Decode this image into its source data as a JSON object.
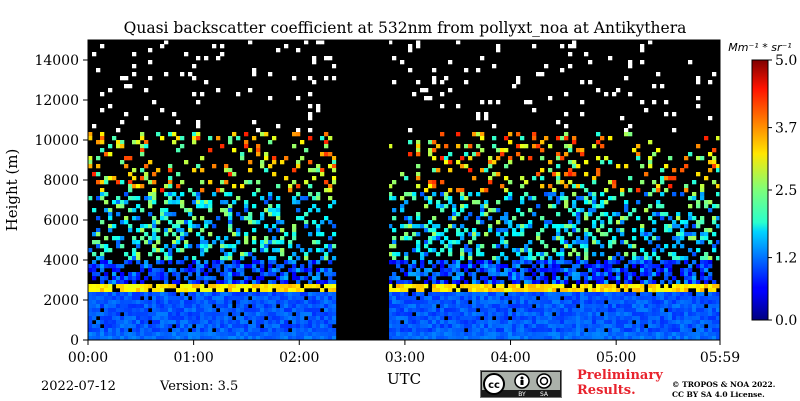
{
  "chart_data": {
    "type": "heatmap",
    "title": "Quasi backscatter coefficient at 532nm from pollyxt_noa at Antikythera",
    "xlabel": "UTC",
    "ylabel": "Height (m)",
    "x_tick_labels": [
      "00:00",
      "01:00",
      "02:00",
      "03:00",
      "04:00",
      "05:00",
      "05:59"
    ],
    "x_tick_hours": [
      0,
      1,
      2,
      3,
      4,
      5,
      5.983
    ],
    "xlim_hours": [
      0,
      5.983
    ],
    "y_ticks": [
      0,
      2000,
      4000,
      6000,
      8000,
      10000,
      12000,
      14000
    ],
    "y_tick_labels": [
      "0",
      "2000",
      "4000",
      "6000",
      "8000",
      "10000",
      "12000",
      "14000"
    ],
    "ylim": [
      0,
      15000
    ],
    "colorbar": {
      "unit_label": "Mm⁻¹ * sr⁻¹",
      "ticks": [
        0.0,
        1.2,
        2.5,
        3.7,
        5.0
      ],
      "tick_labels": [
        "0.0",
        "1.2",
        "2.5",
        "3.7",
        "5.0"
      ],
      "range": [
        0,
        5
      ],
      "colormap": "jet"
    },
    "no_data_intervals_hours": [
      [
        2.35,
        2.85
      ]
    ],
    "boundary_layer_top_m": 2500,
    "aerosol_layer_m": [
      4000,
      10500
    ],
    "background_color": "#000000"
  },
  "footer": {
    "date": "2022-07-12",
    "version": "Version: 3.5",
    "preliminary_line1": "Preliminary",
    "preliminary_line2": "Results.",
    "copyright_line1": "© TROPOS & NOA 2022.",
    "copyright_line2": "CC BY SA 4.0 License.",
    "cc_labels": [
      "BY",
      "SA"
    ]
  }
}
